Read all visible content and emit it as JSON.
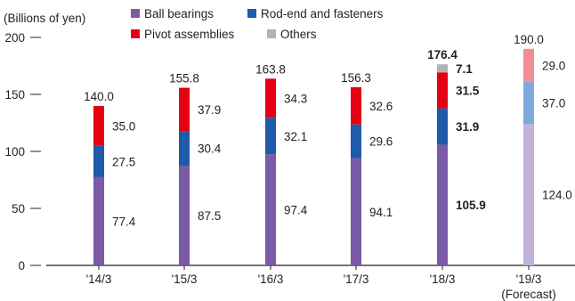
{
  "chart_data": {
    "type": "bar",
    "stacked": true,
    "ylabel": "(Billions of yen)",
    "ylim": [
      0,
      200
    ],
    "yticks": [
      "0",
      "50",
      "100",
      "150",
      "200"
    ],
    "categories": [
      "'14/3",
      "'15/3",
      "'16/3",
      "'17/3",
      "'18/3",
      "'19/3"
    ],
    "category_note": "(Forecast)",
    "legend": [
      {
        "name": "Ball bearings",
        "color": "#7b5aa6"
      },
      {
        "name": "Rod-end and fasteners",
        "color": "#1f5aab"
      },
      {
        "name": "Pivot assemblies",
        "color": "#e60012"
      },
      {
        "name": "Others",
        "color": "#b3b3b3"
      }
    ],
    "series": [
      {
        "name": "Ball bearings",
        "values": [
          77.4,
          87.5,
          97.4,
          94.1,
          105.9,
          124.0
        ],
        "labels": [
          "77.4",
          "87.5",
          "97.4",
          "94.1",
          "105.9",
          "124.0"
        ]
      },
      {
        "name": "Rod-end and fasteners",
        "values": [
          27.5,
          30.4,
          32.1,
          29.6,
          31.9,
          37.0
        ],
        "labels": [
          "27.5",
          "30.4",
          "32.1",
          "29.6",
          "31.9",
          "37.0"
        ]
      },
      {
        "name": "Pivot assemblies",
        "values": [
          35.0,
          37.9,
          34.3,
          32.6,
          31.5,
          29.0
        ],
        "labels": [
          "35.0",
          "37.9",
          "34.3",
          "32.6",
          "31.5",
          "29.0"
        ]
      },
      {
        "name": "Others",
        "values": [
          0,
          0,
          0,
          0,
          7.1,
          0
        ],
        "labels": [
          "",
          "",
          "",
          "",
          "7.1",
          ""
        ]
      }
    ],
    "totals": [
      "140.0",
      "155.8",
      "163.8",
      "156.3",
      "176.4",
      "190.0"
    ],
    "forecast_colors": [
      "#c2b2d9",
      "#7fa9dc",
      "#f28d97"
    ],
    "highlight_index": 4,
    "forecast_index": 5,
    "grid": false,
    "legend_position": "top"
  }
}
